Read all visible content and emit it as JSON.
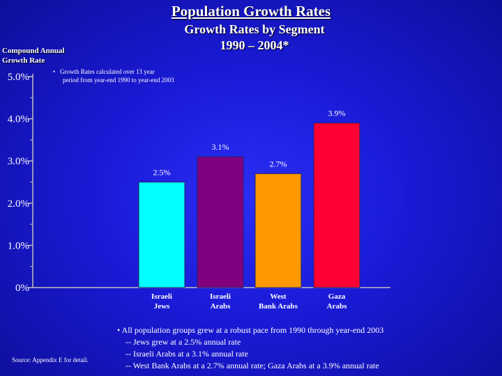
{
  "header": {
    "title": "Population Growth Rates",
    "subtitle_line1": "Growth Rates by Segment",
    "subtitle_line2": "1990 – 2004*"
  },
  "y_axis_title": {
    "line1": "Compound Annual",
    "line2": "Growth Rate"
  },
  "footnote": {
    "bullet": "•",
    "line1": "Growth Rates calculated over 13 year",
    "line2": "period from year-end 1990 to year-end 2003"
  },
  "source": "Source: Appendix E for detail.",
  "notes": {
    "bullet_line": "• All population groups grew at a robust pace from 1990 through year-end 2003",
    "sub1": "-- Jews grew at a 2.5% annual rate",
    "sub2": "-- Israeli Arabs at a 3.1% annual rate",
    "sub3": "-- West Bank Arabs at a 2.7% annual rate; Gaza Arabs at a 3.9% annual rate"
  },
  "chart_data": {
    "type": "bar",
    "title": "Population Growth Rates",
    "subtitle": "Growth Rates by Segment 1990 – 2004*",
    "ylabel": "Compound Annual Growth Rate",
    "xlabel": "",
    "ylim": [
      0,
      5.0
    ],
    "y_ticks": [
      {
        "value": 0,
        "label": "0%"
      },
      {
        "value": 1.0,
        "label": "1.0%"
      },
      {
        "value": 2.0,
        "label": "2.0%"
      },
      {
        "value": 3.0,
        "label": "3.0%"
      },
      {
        "value": 4.0,
        "label": "4.0%"
      },
      {
        "value": 5.0,
        "label": "5.0%"
      }
    ],
    "y_minor_ticks": [
      0.5,
      1.5,
      2.5,
      3.5,
      4.5
    ],
    "categories": [
      {
        "line1": "Israeli",
        "line2": "Jews"
      },
      {
        "line1": "Israeli",
        "line2": "Arabs"
      },
      {
        "line1": "West",
        "line2": "Bank Arabs"
      },
      {
        "line1": "Gaza",
        "line2": "Arabs"
      }
    ],
    "values": [
      2.5,
      3.1,
      2.7,
      3.9
    ],
    "value_labels": [
      "2.5%",
      "3.1%",
      "2.7%",
      "3.9%"
    ],
    "colors": [
      "#00ffff",
      "#800080",
      "#ff9900",
      "#ff0033"
    ],
    "axis_color": "#c0c0c0",
    "grid": false
  }
}
